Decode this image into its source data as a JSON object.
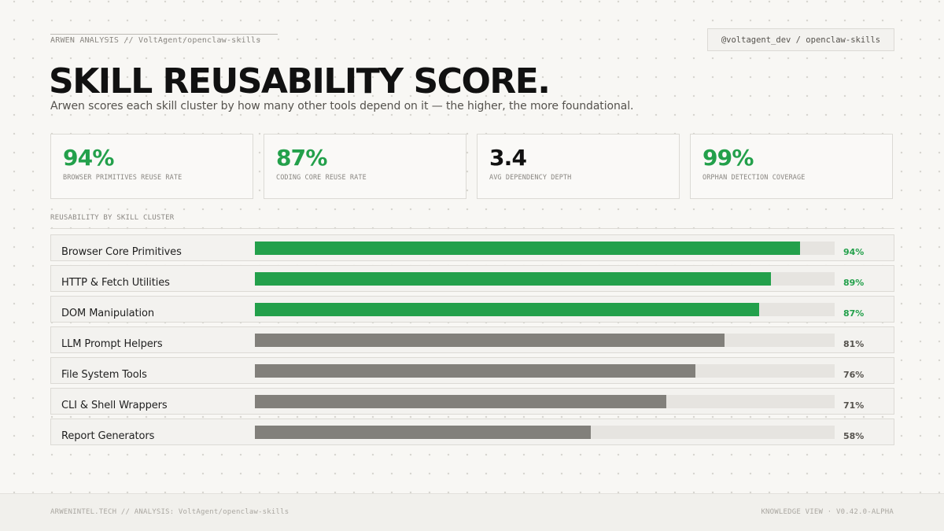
{
  "header": {
    "breadcrumb": "ARWEN ANALYSIS  //  VoltAgent/openclaw-skills",
    "handle": "@voltagent_dev / openclaw-skills",
    "title": "SKILL REUSABILITY SCORE.",
    "subtitle": "Arwen scores each skill cluster by how many other tools depend on it — the higher, the more foundational."
  },
  "stats": [
    {
      "value": "94%",
      "label": "BROWSER PRIMITIVES REUSE RATE",
      "color": "#23a04b"
    },
    {
      "value": "87%",
      "label": "CODING CORE REUSE RATE",
      "color": "#23a04b"
    },
    {
      "value": "3.4",
      "label": "AVG DEPENDENCY DEPTH",
      "color": "#111111"
    },
    {
      "value": "99%",
      "label": "ORPHAN DETECTION COVERAGE",
      "color": "#23a04b"
    }
  ],
  "chart_data": {
    "type": "bar",
    "orientation": "horizontal",
    "title": "REUSABILITY BY SKILL CLUSTER",
    "categories": [
      "Browser Core Primitives",
      "HTTP & Fetch Utilities",
      "DOM Manipulation",
      "LLM Prompt Helpers",
      "File System Tools",
      "CLI & Shell Wrappers",
      "Report Generators"
    ],
    "values": [
      94,
      89,
      87,
      81,
      76,
      71,
      58
    ],
    "value_labels": [
      "94%",
      "89%",
      "87%",
      "81%",
      "76%",
      "71%",
      "58%"
    ],
    "highlighted": [
      true,
      true,
      true,
      false,
      false,
      false,
      false
    ],
    "xlim": [
      0,
      100
    ],
    "colors": {
      "highlight": "#23a04b",
      "normal": "#82807b",
      "track": "#e6e4e0",
      "normal_label": "#55524d"
    }
  },
  "footer": {
    "left": "ARWENINTEL.TECH  //  ANALYSIS: VoltAgent/openclaw-skills",
    "right": "KNOWLEDGE VIEW  ·  V0.42.0-ALPHA"
  }
}
